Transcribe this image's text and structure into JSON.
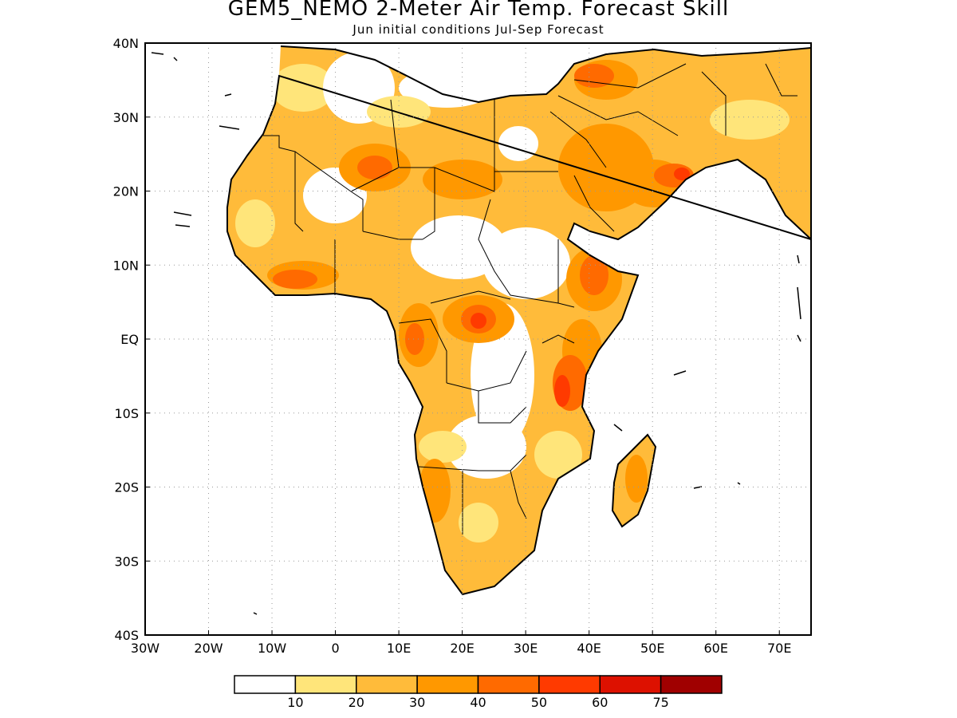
{
  "title": "GEM5_NEMO 2-Meter Air Temp. Forecast Skill",
  "subtitle": "Jun initial conditions  Jul-Sep Forecast",
  "map": {
    "lon_range": [
      -30,
      75
    ],
    "lat_range": [
      -40,
      40
    ],
    "grid": true,
    "x_tick_labels": [
      "30W",
      "20W",
      "10W",
      "0",
      "10E",
      "20E",
      "30E",
      "40E",
      "50E",
      "60E",
      "70E"
    ],
    "y_tick_labels": [
      "40N",
      "30N",
      "20N",
      "10N",
      "EQ",
      "10S",
      "20S",
      "30S",
      "40S"
    ]
  },
  "colorbar": {
    "colors": [
      "#ffffff",
      "#ffe57a",
      "#ffbb3a",
      "#ff9800",
      "#ff6a00",
      "#ff3a00",
      "#dd1100",
      "#a00000"
    ],
    "labels": [
      "10",
      "20",
      "30",
      "40",
      "50",
      "60",
      "75"
    ]
  }
}
